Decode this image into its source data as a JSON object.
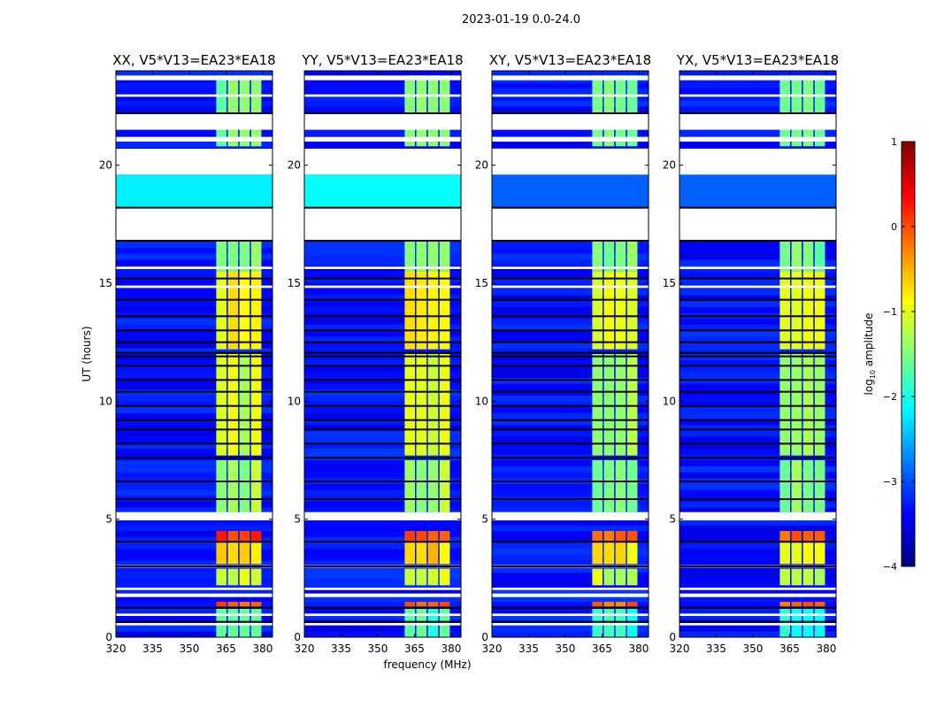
{
  "chart_data": {
    "type": "heatmap",
    "suptitle": "2023-01-19 0.0-24.0",
    "xlabel": "frequency (MHz)",
    "ylabel": "UT (hours)",
    "xlim": [
      320,
      384
    ],
    "ylim": [
      0,
      24
    ],
    "xticks": [
      "320",
      "335",
      "350",
      "365",
      "380"
    ],
    "xtick_values": [
      320,
      335,
      350,
      365,
      380
    ],
    "yticks": [
      "0",
      "5",
      "10",
      "15",
      "20"
    ],
    "ytick_values": [
      0,
      5,
      10,
      15,
      20
    ],
    "panels": [
      {
        "title": "XX, V5*V13=EA23*EA18",
        "cyan_level": -2.2
      },
      {
        "title": "YY, V5*V13=EA23*EA18",
        "cyan_level": -2.1
      },
      {
        "title": "XY, V5*V13=EA23*EA18",
        "cyan_level": -2.9
      },
      {
        "title": "YX, V5*V13=EA23*EA18",
        "cyan_level": -2.9
      }
    ],
    "background_level": -3.3,
    "band_mhz": [
      361,
      380
    ],
    "band_segments_hours": [
      [
        0,
        1.2,
        -1.8
      ],
      [
        1.3,
        1.5,
        0
      ],
      [
        2.2,
        2.9,
        -1
      ],
      [
        3.1,
        4.0,
        -0.7
      ],
      [
        4.0,
        4.5,
        0.1
      ],
      [
        5.3,
        7.5,
        -1.3
      ],
      [
        7.7,
        12,
        -1.1
      ],
      [
        12.2,
        15.5,
        -0.9
      ],
      [
        15.5,
        16.8,
        -1.4
      ],
      [
        20.8,
        23.8,
        -1.5
      ]
    ],
    "cyan_band_hours": [
      18.2,
      19.6
    ],
    "flagged_hours": [
      [
        0.5,
        0.6
      ],
      [
        0.9,
        1.0
      ],
      [
        1.7,
        1.85
      ],
      [
        2.0,
        2.1
      ],
      [
        2.95,
        3.05
      ],
      [
        4.95,
        5.3
      ],
      [
        14.8,
        14.9
      ],
      [
        15.6,
        15.7
      ],
      [
        16.8,
        18.2
      ],
      [
        19.6,
        20.7
      ],
      [
        21.0,
        21.2
      ],
      [
        21.5,
        22.2
      ],
      [
        22.9,
        23.0
      ],
      [
        23.6,
        23.8
      ]
    ],
    "black_line_hours": [
      0.65,
      1.25,
      3.0,
      4.05,
      5.85,
      6.6,
      7.6,
      8.2,
      8.8,
      9.2,
      9.8,
      10.4,
      10.9,
      11.5,
      11.9,
      12.05,
      12.5,
      13.0,
      13.6,
      14.3,
      15.2,
      16.8,
      18.2,
      22.2
    ],
    "colorbar": {
      "label": "log10 amplitude",
      "label_main": "log",
      "label_sub": "10",
      "label_tail": " amplitude",
      "range": [
        -4,
        1
      ],
      "ticks": [
        "1",
        "0",
        "−1",
        "−2",
        "−3",
        "−4"
      ],
      "tick_values": [
        1,
        0,
        -1,
        -2,
        -3,
        -4
      ],
      "colormap": "jet"
    }
  }
}
